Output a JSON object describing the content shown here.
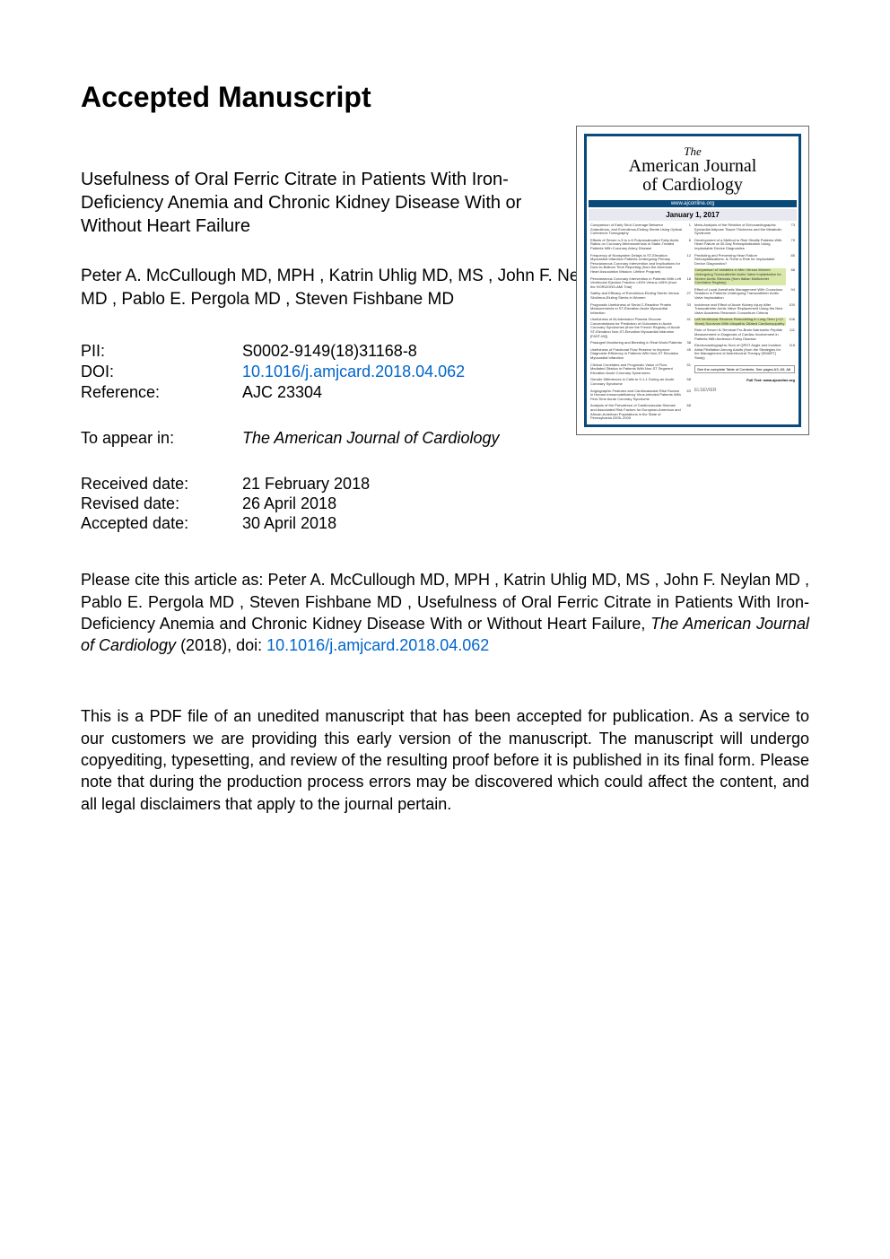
{
  "heading": "Accepted Manuscript",
  "title": "Usefulness of Oral Ferric Citrate in Patients With Iron-Deficiency Anemia and Chronic Kidney Disease With or Without Heart Failure",
  "authors": "Peter A. McCullough MD, MPH ,  Katrin Uhlig MD, MS , John F. Neylan MD ,  Pablo E. Pergola MD ,  Steven Fishbane MD",
  "meta": {
    "pii_label": "PII:",
    "pii_value": "S0002-9149(18)31168-8",
    "doi_label": "DOI:",
    "doi_value": "10.1016/j.amjcard.2018.04.062",
    "ref_label": "Reference:",
    "ref_value": "AJC 23304"
  },
  "appear": {
    "label": "To appear in:",
    "value": "The American Journal of Cardiology"
  },
  "dates": {
    "received_label": "Received date:",
    "received_value": "21 February 2018",
    "revised_label": "Revised date:",
    "revised_value": "26 April 2018",
    "accepted_label": "Accepted date:",
    "accepted_value": "30 April 2018"
  },
  "cite": {
    "prefix": "Please cite this article as: Peter A. McCullough MD, MPH , Katrin Uhlig MD, MS , John F. Neylan MD , Pablo E. Pergola MD , Steven Fishbane MD , Usefulness of Oral Ferric Citrate in Patients With Iron-Deficiency Anemia and Chronic Kidney Disease With or Without Heart Failure, ",
    "journal": "The American Journal of Cardiology",
    "year": " (2018), doi: ",
    "doi": "10.1016/j.amjcard.2018.04.062"
  },
  "disclaimer": "This is a PDF file of an unedited manuscript that has been accepted for publication. As a service to our customers we are providing this early version of the manuscript. The manuscript will undergo copyediting, typesetting, and review of the resulting proof before it is published in its final form. Please note that during the production process errors may be discovered which could affect the content, and all legal disclaimers that apply to the journal pertain.",
  "cover": {
    "the": "The",
    "line1": "American Journal",
    "line2": "of Cardiology",
    "url": "www.ajconline.org",
    "date": "January 1, 2017",
    "left_entries": [
      {
        "text": "Comparison of Early Strut Coverage Between Zotarolimus- and Everolimus-Eluting Stents Using Optical Coherence Tomography",
        "pg": "1"
      },
      {
        "text": "Effects of Serum n-3 to n-6 Polyunsaturated Fatty Acids Ratios on Coronary Atherosclerosis in Statin-Treated Patients With Coronary Artery Disease",
        "pg": "6"
      },
      {
        "text": "Frequency of Nonsystem Delays in ST-Elevation Myocardial Infarction Patients Undergoing Primary Percutaneous Coronary Intervention and Implications for Door-to-Balloon Time Reporting (from the American Heart Association Mission: Lifeline Program)",
        "pg": "12"
      },
      {
        "text": "Percutaneous Coronary Intervention in Patients With Left Ventricular Ejection Fraction <45% Versus ≥45% (from the HORIZONS-AMI Trial)",
        "pg": "18"
      },
      {
        "text": "Safety and Efficacy of Everolimus-Eluting Stents Versus Sirolimus-Eluting Stents in Women",
        "pg": "27"
      },
      {
        "text": "Prognostic Usefulness of Serial C-Reactive Protein Measurements in ST-Elevation Acute Myocardial Infarction",
        "pg": "33"
      },
      {
        "text": "Usefulness of At-Admission Plasma Glucose Concentrations for Prediction of Outcomes in Acute Coronary Syndromes (from the French Registry of Acute ST-Elevation Non-ST-Elevation Myocardial Infarction [FAST-MI])",
        "pg": "41"
      },
      {
        "text": "Prasugrel Monitoring and Bleeding in Real World Patients",
        "pg": "38"
      },
      {
        "text": "Usefulness of Fractional Flow Reserve to Improve Diagnostic Efficiency in Patients With Non-ST Elevation Myocardial Infarction",
        "pg": "45"
      },
      {
        "text": "Clinical Correlates and Prognostic Value of Flow Mediated Dilation in Patients With Non-ST Segment Elevation Acute Coronary Syndromes",
        "pg": "51"
      },
      {
        "text": "Gender Differences in Calls to 9-1-1 During an Acute Coronary Syndrome",
        "pg": "58"
      },
      {
        "text": "Angiographic Features and Cardiovascular Risk Factors in Human Immunodeficiency Virus-Infected Patients With First-Time Acute Coronary Syndrome",
        "pg": "63"
      },
      {
        "text": "Analysis of the Prevalence of Cardiovascular Disease and Associated Risk Factors for European-American and African-American Populations in the State of Pennsylvania 2005–2009",
        "pg": "68"
      }
    ],
    "right_entries": [
      {
        "text": "Meta-Analysis of the Relation of Echocardiographic Epicardial Adipose Tissue Thickness and the Metabolic Syndrome",
        "pg": "73"
      },
      {
        "text": "Development of a Method to Risk Stratify Patients With Heart Failure at 30-Day Rehospitalization Using Implantable Device Diagnostics",
        "pg": "79"
      },
      {
        "text": "Predicting and Preventing Heart Failure Rehospitalizations: Is There a Role for Implantable Device Diagnostics?",
        "pg": "85"
      },
      {
        "text": "Comparison of Variables in Men Versus Women Undergoing Transcatheter Aortic Valve Implantation for Severe Aortic Stenosis (from Italian Multicenter CoreValve Registry)",
        "pg": "88",
        "hl": true
      },
      {
        "text": "Effect of Local Anesthetic Management With Conscious Sedation in Patients Undergoing Transcatheter Aortic Valve Implantation",
        "pg": "94"
      },
      {
        "text": "Incidence and Effect of Acute Kidney Injury After Transcatheter Aortic Valve Replacement Using the New Valve Academic Research Consortium Criteria",
        "pg": "100"
      },
      {
        "text": "Left Ventricular Reverse Remodeling in Long-Term (>12 Years) Survivors With Idiopathic Dilated Cardiomyopathy",
        "pg": "106",
        "hl": true
      },
      {
        "text": "Role of Serum N-Terminal Pro-Brain Natriuretic Peptide Measurement in Diagnosis of Cardiac Involvement in Patients With Anderson-Fabry Disease",
        "pg": "111"
      },
      {
        "text": "Electrocardiographic Sum of QRST Angle and Incident Atrial Fibrillation Among Adults (from the Strategies for the Management of Antiretroviral Therapy [SMART] Study)",
        "pg": "118"
      }
    ],
    "footer_box": "See the complete Table of Contents. See pages A3, A5, A6",
    "fulltext": "Full Text: www.ajconline.org",
    "logo": "ELSEVIER"
  },
  "colors": {
    "link": "#0066cc",
    "cover_border": "#0a4a7a",
    "highlight": "#d9e8a8"
  }
}
